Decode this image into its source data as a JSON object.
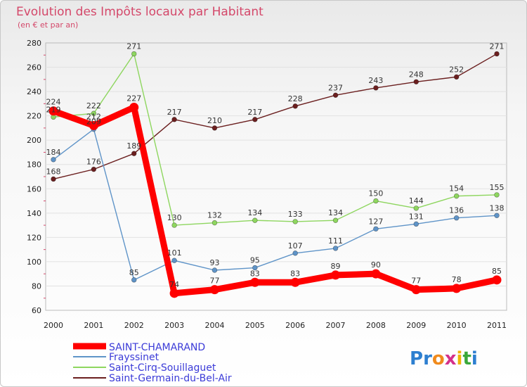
{
  "chart_data": {
    "type": "line",
    "title": "Evolution des Impôts locaux par Habitant",
    "subtitle": "(en € et par an)",
    "xlabel": "",
    "ylabel": "",
    "ylim": [
      60,
      280
    ],
    "yticks": [
      60,
      80,
      100,
      120,
      140,
      160,
      180,
      200,
      220,
      240,
      260,
      280
    ],
    "grid": true,
    "legend_position": "bottom-left",
    "categories": [
      "2000",
      "2001",
      "2002",
      "2003",
      "2004",
      "2005",
      "2006",
      "2007",
      "2008",
      "2009",
      "2010",
      "2011"
    ],
    "series": [
      {
        "name": "SAINT-CHAMARAND",
        "color": "#ff0000",
        "values": [
          224,
          212,
          227,
          74,
          77,
          83,
          83,
          89,
          90,
          77,
          78,
          85
        ],
        "labels": [
          "224",
          "212",
          "227",
          "74",
          "77",
          "83",
          "83",
          "89",
          "90",
          "77",
          "78",
          "85"
        ]
      },
      {
        "name": "Frayssinet",
        "color": "#5f94c8",
        "values": [
          184,
          209,
          85,
          101,
          93,
          95,
          107,
          111,
          127,
          131,
          136,
          138
        ],
        "labels": [
          "184",
          "209",
          "85",
          "101",
          "93",
          "95",
          "107",
          "111",
          "127",
          "131",
          "136",
          "138"
        ]
      },
      {
        "name": "Saint-Cirq-Souillaguet",
        "color": "#8ed65f",
        "values": [
          219,
          222,
          271,
          130,
          132,
          134,
          133,
          134,
          150,
          144,
          154,
          155
        ],
        "labels": [
          "219",
          "222",
          "271",
          "130",
          "132",
          "134",
          "133",
          "134",
          "150",
          "144",
          "154",
          "155"
        ]
      },
      {
        "name": "Saint-Germain-du-Bel-Air",
        "color": "#6b1f1f",
        "values": [
          168,
          176,
          189,
          217,
          210,
          217,
          228,
          237,
          243,
          248,
          252,
          271
        ],
        "labels": [
          "168",
          "176",
          "189",
          "217",
          "210",
          "217",
          "228",
          "237",
          "243",
          "248",
          "252",
          "271"
        ]
      }
    ]
  },
  "logo": {
    "text": "Proxiti",
    "letters": [
      "P",
      "r",
      "o",
      "x",
      "i",
      "t",
      "i"
    ],
    "colors": [
      "#2d7fd0",
      "#2d7fd0",
      "#f08a1c",
      "#d4308a",
      "#f0b400",
      "#3aa83a",
      "#2d7fd0"
    ]
  }
}
